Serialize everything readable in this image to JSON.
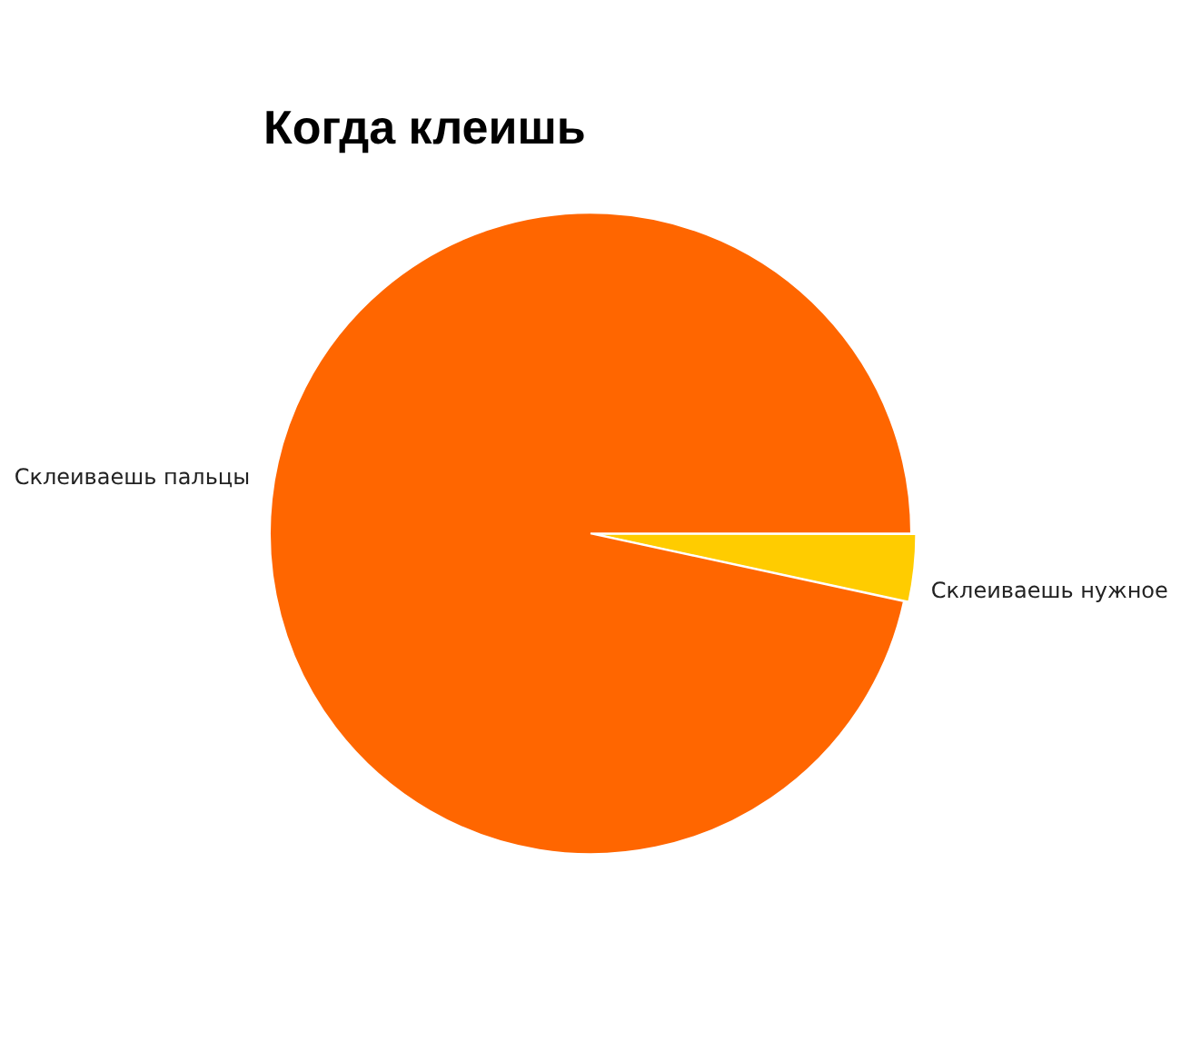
{
  "chart_data": {
    "type": "pie",
    "title": "Когда клеишь",
    "categories": [
      "Склеиваешь нужное",
      "Склеиваешь пальцы"
    ],
    "values": [
      3.4,
      96.6
    ],
    "colors": [
      "#ffcc00",
      "#ff6600"
    ]
  }
}
